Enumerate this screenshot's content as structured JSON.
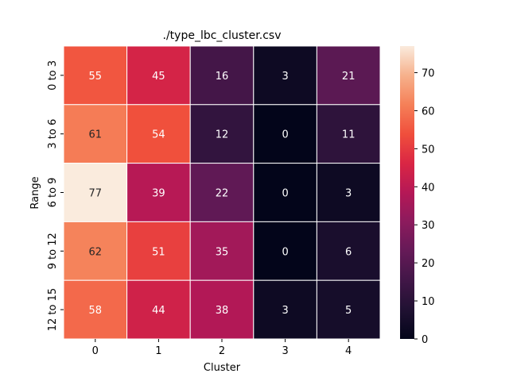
{
  "chart_data": {
    "type": "heatmap",
    "title": "./type_lbc_cluster.csv",
    "xlabel": "Cluster",
    "ylabel": "Range",
    "x_categories": [
      "0",
      "1",
      "2",
      "3",
      "4"
    ],
    "y_categories": [
      "0 to 3",
      "3 to 6",
      "6 to 9",
      "9 to 12",
      "12 to 15"
    ],
    "values": [
      [
        55,
        45,
        16,
        3,
        21
      ],
      [
        61,
        54,
        12,
        0,
        11
      ],
      [
        77,
        39,
        22,
        0,
        3
      ],
      [
        62,
        51,
        35,
        0,
        6
      ],
      [
        58,
        44,
        38,
        3,
        5
      ]
    ],
    "value_range": [
      0,
      77
    ],
    "colorbar_ticks": [
      "0",
      "10",
      "20",
      "30",
      "40",
      "50",
      "60",
      "70"
    ],
    "colormap": "rocket",
    "grid": false
  }
}
